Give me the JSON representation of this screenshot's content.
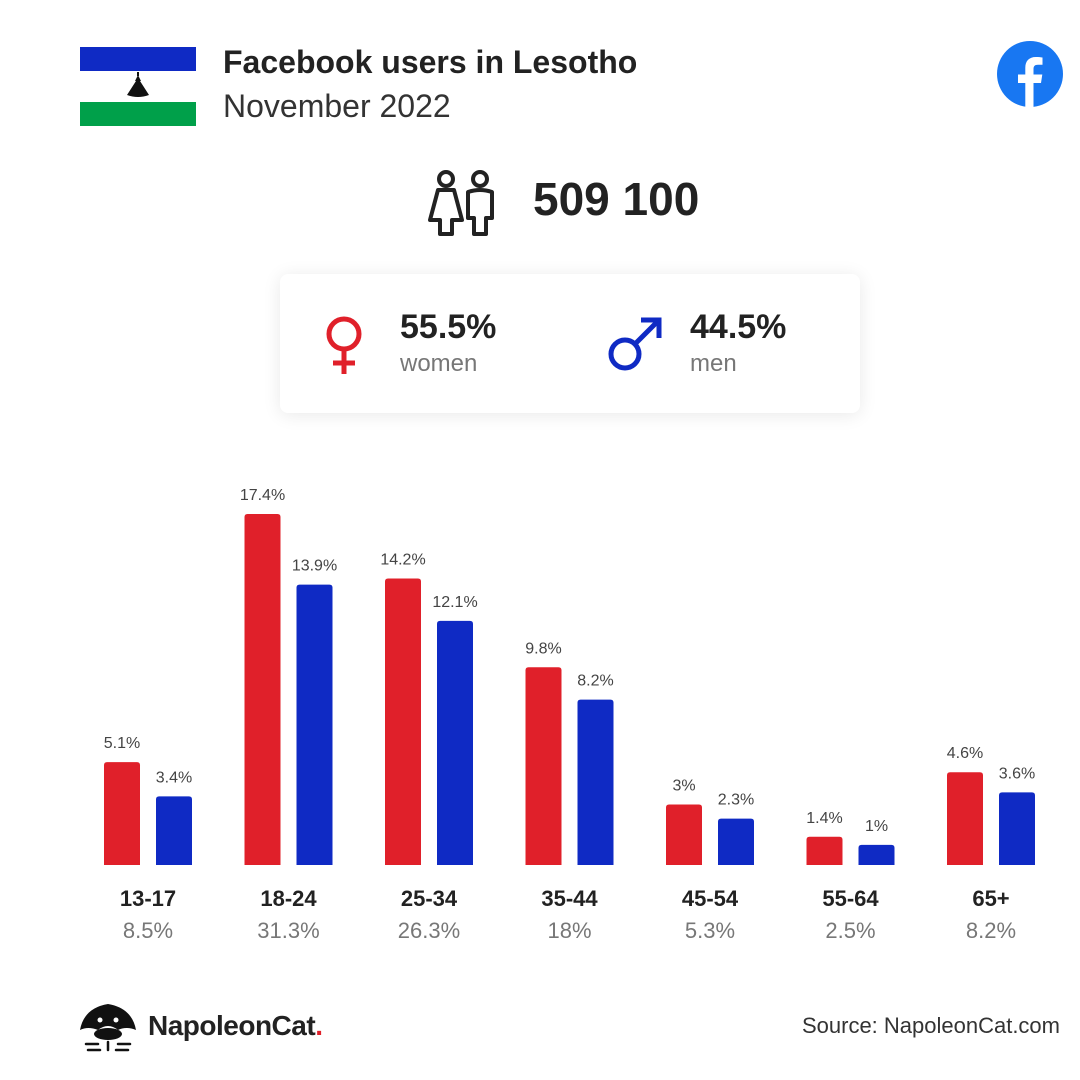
{
  "header": {
    "title": "Facebook users in Lesotho",
    "subtitle": "November 2022"
  },
  "total": {
    "value": "509 100",
    "icon": "people-icon"
  },
  "gender": {
    "women": {
      "pct": "55.5%",
      "label": "women",
      "color": "#e0202a"
    },
    "men": {
      "pct": "44.5%",
      "label": "men",
      "color": "#0f2ac4"
    }
  },
  "chart_data": {
    "type": "bar",
    "categories": [
      "13-17",
      "18-24",
      "25-34",
      "35-44",
      "45-54",
      "55-64",
      "65+"
    ],
    "category_totals": [
      "8.5%",
      "31.3%",
      "26.3%",
      "18%",
      "5.3%",
      "2.5%",
      "8.2%"
    ],
    "series": [
      {
        "color": "#e0202a",
        "values": [
          5.1,
          17.4,
          14.2,
          9.8,
          3,
          1.4,
          4.6
        ],
        "labels": [
          "5.1%",
          "17.4%",
          "14.2%",
          "9.8%",
          "3%",
          "1.4%",
          "4.6%"
        ]
      },
      {
        "color": "#0f2ac4",
        "values": [
          3.4,
          13.9,
          12.1,
          8.2,
          2.3,
          1,
          3.6
        ],
        "labels": [
          "3.4%",
          "13.9%",
          "12.1%",
          "8.2%",
          "2.3%",
          "1%",
          "3.6%"
        ]
      }
    ],
    "ylim": [
      0,
      17.4
    ],
    "grid": false
  },
  "footer": {
    "brand": "NapoleonCat",
    "brand_dot": ".",
    "source": "Source: NapoleonCat.com"
  }
}
